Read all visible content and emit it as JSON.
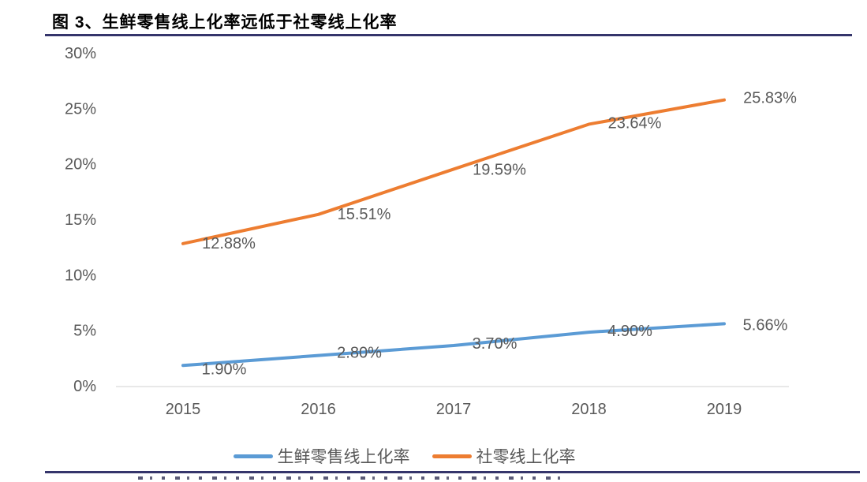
{
  "figure": {
    "title": "图 3、生鲜零售线上化率远低于社零线上化率"
  },
  "chart_data": {
    "type": "line",
    "title": "生鲜零售线上化率远低于社零线上化率",
    "categories": [
      "2015",
      "2016",
      "2017",
      "2018",
      "2019"
    ],
    "series": [
      {
        "name": "生鲜零售线上化率",
        "color": "#5B9BD5",
        "values": [
          1.9,
          2.8,
          3.7,
          4.9,
          5.66
        ],
        "labels": [
          "1.90%",
          "2.80%",
          "3.70%",
          "4.90%",
          "5.66%"
        ]
      },
      {
        "name": "社零线上化率",
        "color": "#ED7D31",
        "values": [
          12.88,
          15.51,
          19.59,
          23.64,
          25.83
        ],
        "labels": [
          "12.88%",
          "15.51%",
          "19.59%",
          "23.64%",
          "25.83%"
        ]
      }
    ],
    "xlabel": "",
    "ylabel": "",
    "ylim": [
      0,
      30
    ],
    "yticks": [
      0,
      5,
      10,
      15,
      20,
      25,
      30
    ],
    "ytick_labels": [
      "0%",
      "5%",
      "10%",
      "15%",
      "20%",
      "25%",
      "30%"
    ],
    "grid": "x-axis-baseline-only",
    "legend_position": "bottom",
    "label_offset_x": [
      52,
      58
    ],
    "label_offset_y": [
      [
        5,
        -3,
        -2,
        -1,
        2
      ],
      [
        0,
        0,
        1,
        -1,
        -2
      ]
    ]
  },
  "colors": {
    "rule_navy": "#35356B",
    "axis_text": "#595959",
    "gridline": "#D9D9D9",
    "series_blue": "#5B9BD5",
    "series_orange": "#ED7D31"
  }
}
